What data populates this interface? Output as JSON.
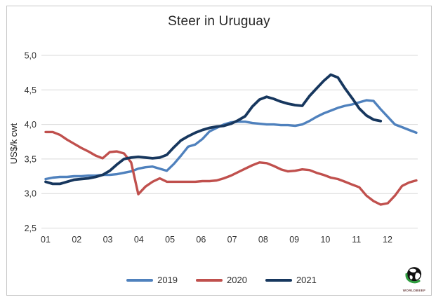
{
  "window": {
    "background": "#ffffff",
    "border_color": "#c6c6c6"
  },
  "chart_data": {
    "type": "line",
    "title": "Steer in Uruguay",
    "ylabel": "US$/k cwt",
    "xlabel": "",
    "x_unit": "week_of_year",
    "x_tick_labels": [
      "01",
      "02",
      "03",
      "04",
      "05",
      "06",
      "07",
      "08",
      "09",
      "10",
      "11",
      "12"
    ],
    "y_tick_values": [
      5.0,
      4.5,
      4.0,
      3.5,
      3.0,
      2.5
    ],
    "y_tick_labels": [
      "5,0",
      "4,5",
      "4,0",
      "3,5",
      "3,0",
      "2,5"
    ],
    "ylim": [
      2.5,
      5.0
    ],
    "grid": "horizontal",
    "gridline_color": "#d9d9d9",
    "legend_position": "bottom",
    "series": [
      {
        "name": "2019",
        "color": "#4f81bd",
        "stroke_width": 3.4,
        "start_week": 1,
        "values": [
          3.21,
          3.23,
          3.24,
          3.24,
          3.25,
          3.25,
          3.26,
          3.26,
          3.27,
          3.27,
          3.28,
          3.3,
          3.32,
          3.36,
          3.38,
          3.39,
          3.36,
          3.33,
          3.43,
          3.55,
          3.68,
          3.71,
          3.79,
          3.9,
          3.95,
          4.0,
          4.03,
          4.04,
          4.04,
          4.02,
          4.01,
          4.0,
          4.0,
          3.99,
          3.99,
          3.98,
          4.0,
          4.05,
          4.11,
          4.16,
          4.2,
          4.24,
          4.27,
          4.29,
          4.32,
          4.35,
          4.34,
          4.22,
          4.11,
          4.0,
          3.96,
          3.92,
          3.88
        ]
      },
      {
        "name": "2020",
        "color": "#c0504d",
        "stroke_width": 3.4,
        "start_week": 1,
        "values": [
          3.89,
          3.89,
          3.85,
          3.78,
          3.72,
          3.66,
          3.61,
          3.55,
          3.51,
          3.6,
          3.61,
          3.58,
          3.45,
          2.99,
          3.1,
          3.17,
          3.22,
          3.17,
          3.17,
          3.17,
          3.17,
          3.17,
          3.18,
          3.18,
          3.19,
          3.22,
          3.26,
          3.31,
          3.36,
          3.41,
          3.45,
          3.44,
          3.4,
          3.35,
          3.32,
          3.33,
          3.35,
          3.34,
          3.3,
          3.27,
          3.23,
          3.21,
          3.17,
          3.13,
          3.09,
          2.97,
          2.89,
          2.84,
          2.86,
          2.97,
          3.11,
          3.16,
          3.19
        ]
      },
      {
        "name": "2021",
        "color": "#17375e",
        "stroke_width": 3.8,
        "start_week": 1,
        "values": [
          3.17,
          3.14,
          3.14,
          3.17,
          3.2,
          3.21,
          3.22,
          3.24,
          3.27,
          3.33,
          3.42,
          3.5,
          3.52,
          3.53,
          3.52,
          3.51,
          3.52,
          3.56,
          3.67,
          3.77,
          3.83,
          3.88,
          3.92,
          3.95,
          3.97,
          3.98,
          4.01,
          4.06,
          4.12,
          4.26,
          4.36,
          4.4,
          4.37,
          4.33,
          4.3,
          4.28,
          4.27,
          4.41,
          4.52,
          4.63,
          4.72,
          4.68,
          4.52,
          4.38,
          4.23,
          4.13,
          4.07,
          4.05
        ]
      }
    ]
  },
  "legend": {
    "entries": [
      "2019",
      "2020",
      "2021"
    ]
  },
  "logo": {
    "text": "WORLDBEEF",
    "globe_color": "#101010",
    "accent_green": "#2f9e3f"
  }
}
